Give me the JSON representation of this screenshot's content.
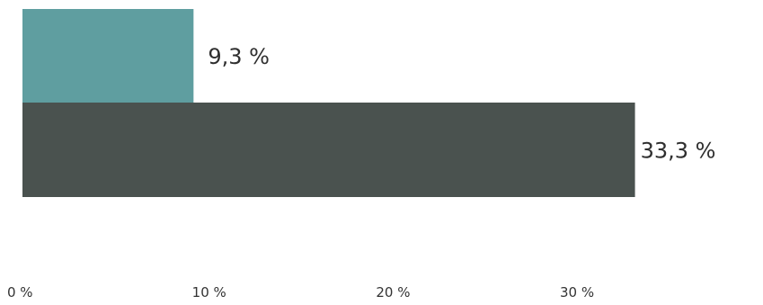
{
  "chart_data": {
    "type": "bar",
    "orientation": "horizontal",
    "values": [
      9.3,
      33.3
    ],
    "value_labels": [
      "9,3 %",
      "33,3 %"
    ],
    "colors": [
      "#5f9ea0",
      "#4a524f"
    ],
    "x_ticks": [
      {
        "value": 0,
        "label": "0 %"
      },
      {
        "value": 10,
        "label": "10 %"
      },
      {
        "value": 20,
        "label": "20 %"
      },
      {
        "value": 30,
        "label": "30 %"
      }
    ],
    "xlim": [
      0,
      38.5
    ],
    "grid": false,
    "legend": "none"
  }
}
